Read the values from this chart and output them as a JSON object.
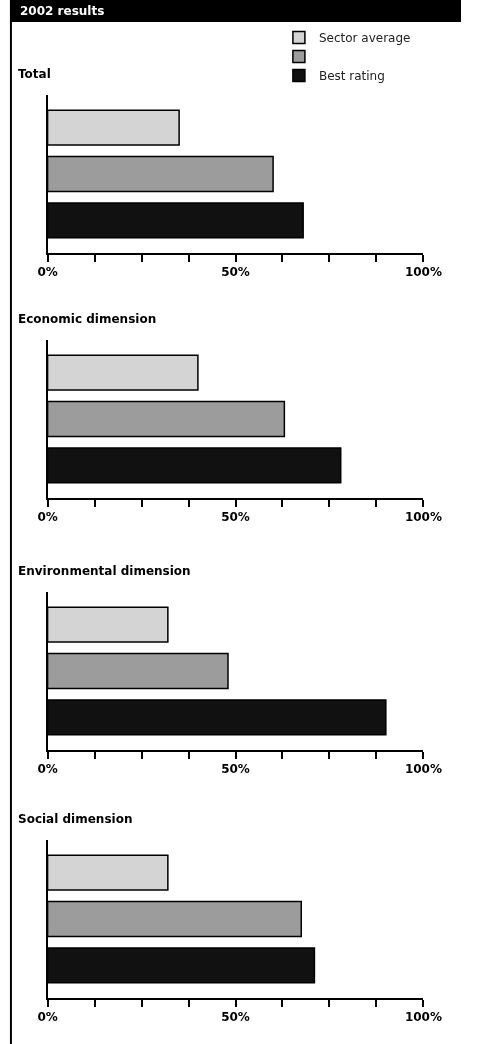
{
  "chart_data": [
    {
      "type": "bar",
      "orientation": "horizontal",
      "title": "Total",
      "annotations": [
        "2002 results"
      ],
      "categories": [
        null
      ],
      "legend": "top right",
      "grid": false,
      "xlim": [
        0,
        100
      ],
      "xticks": [
        {
          "value": 0,
          "label": "0%"
        },
        {
          "value": 12.5,
          "label": null
        },
        {
          "value": 25,
          "label": null
        },
        {
          "value": 37.5,
          "label": null
        },
        {
          "value": 50,
          "label": "50%"
        },
        {
          "value": 62.5,
          "label": null
        },
        {
          "value": 75,
          "label": null
        },
        {
          "value": 87.5,
          "label": null
        },
        {
          "value": 100,
          "label": "100%"
        }
      ],
      "series": [
        {
          "name": "Sector average",
          "color": "#d4d4d4",
          "values": [
            35
          ]
        },
        {
          "color": "#9c9c9c",
          "values": [
            60
          ]
        },
        {
          "name": "Best rating",
          "color": "#111111",
          "values": [
            68
          ]
        }
      ]
    },
    {
      "type": "bar",
      "orientation": "horizontal",
      "title": "Economic dimension",
      "categories": [
        null
      ],
      "grid": false,
      "xlim": [
        0,
        100
      ],
      "xticks": [
        {
          "value": 0,
          "label": "0%"
        },
        {
          "value": 12.5,
          "label": null
        },
        {
          "value": 25,
          "label": null
        },
        {
          "value": 37.5,
          "label": null
        },
        {
          "value": 50,
          "label": "50%"
        },
        {
          "value": 62.5,
          "label": null
        },
        {
          "value": 75,
          "label": null
        },
        {
          "value": 87.5,
          "label": null
        },
        {
          "value": 100,
          "label": "100%"
        }
      ],
      "series": [
        {
          "color": "#d4d4d4",
          "values": [
            40
          ]
        },
        {
          "color": "#9c9c9c",
          "values": [
            63
          ]
        },
        {
          "color": "#111111",
          "values": [
            78
          ]
        }
      ]
    },
    {
      "type": "bar",
      "orientation": "horizontal",
      "title": "Environmental dimension",
      "categories": [
        null
      ],
      "grid": false,
      "xlim": [
        0,
        100
      ],
      "xticks": [
        {
          "value": 0,
          "label": "0%"
        },
        {
          "value": 12.5,
          "label": null
        },
        {
          "value": 25,
          "label": null
        },
        {
          "value": 37.5,
          "label": null
        },
        {
          "value": 50,
          "label": "50%"
        },
        {
          "value": 62.5,
          "label": null
        },
        {
          "value": 75,
          "label": null
        },
        {
          "value": 87.5,
          "label": null
        },
        {
          "value": 100,
          "label": "100%"
        }
      ],
      "series": [
        {
          "color": "#d4d4d4",
          "values": [
            32
          ]
        },
        {
          "color": "#9c9c9c",
          "values": [
            48
          ]
        },
        {
          "color": "#111111",
          "values": [
            90
          ]
        }
      ]
    },
    {
      "type": "bar",
      "orientation": "horizontal",
      "title": "Social dimension",
      "categories": [
        null
      ],
      "grid": false,
      "xlim": [
        0,
        100
      ],
      "xticks": [
        {
          "value": 0,
          "label": "0%"
        },
        {
          "value": 12.5,
          "label": null
        },
        {
          "value": 25,
          "label": null
        },
        {
          "value": 37.5,
          "label": null
        },
        {
          "value": 50,
          "label": "50%"
        },
        {
          "value": 62.5,
          "label": null
        },
        {
          "value": 75,
          "label": null
        },
        {
          "value": 87.5,
          "label": null
        },
        {
          "value": 100,
          "label": "100%"
        }
      ],
      "series": [
        {
          "color": "#d4d4d4",
          "values": [
            32
          ]
        },
        {
          "color": "#9c9c9c",
          "values": [
            67.5
          ]
        },
        {
          "color": "#111111",
          "values": [
            71
          ]
        }
      ]
    }
  ]
}
